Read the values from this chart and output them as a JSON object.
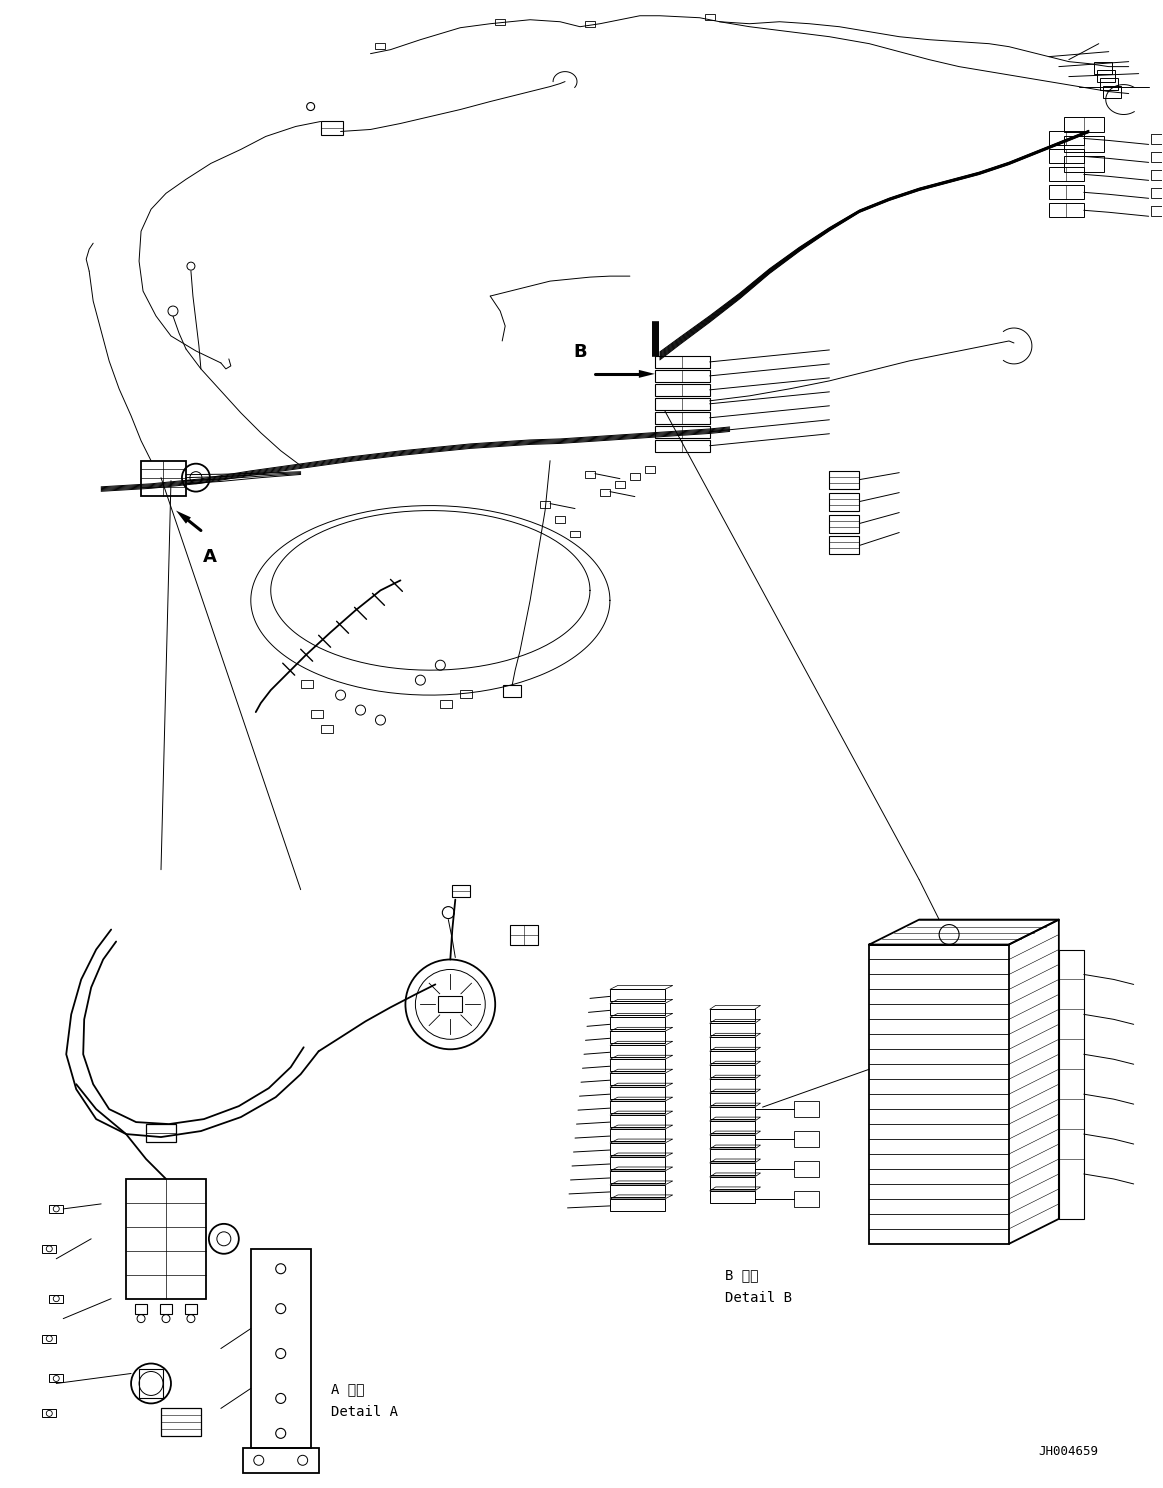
{
  "figure_width": 11.63,
  "figure_height": 14.88,
  "background_color": "#ffffff",
  "line_color": "#000000",
  "label_A": "A",
  "label_B": "B",
  "detail_A_ja": "A 詳細",
  "detail_A_en": "Detail A",
  "detail_B_ja": "B 詳細",
  "detail_B_en": "Detail B",
  "part_number": "JH004659",
  "font_size_label": 13,
  "font_size_detail": 9,
  "font_size_partnum": 8,
  "lw_main": 1.3,
  "lw_thin": 0.7,
  "lw_thick": 2.2
}
